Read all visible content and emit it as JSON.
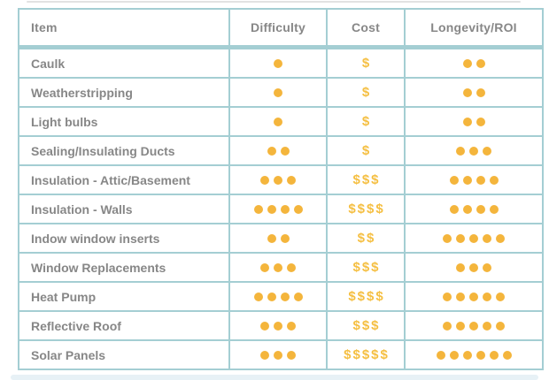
{
  "chart_data": {
    "type": "table",
    "columns": [
      "Item",
      "Difficulty",
      "Cost",
      "Longevity/ROI"
    ],
    "rating_legend": {
      "difficulty_symbol": "dot",
      "cost_symbol": "$",
      "longevity_symbol": "dot"
    },
    "rows": [
      {
        "item": "Caulk",
        "difficulty": 1,
        "cost": 1,
        "longevity": 2
      },
      {
        "item": "Weatherstripping",
        "difficulty": 1,
        "cost": 1,
        "longevity": 2
      },
      {
        "item": "Light bulbs",
        "difficulty": 1,
        "cost": 1,
        "longevity": 2
      },
      {
        "item": "Sealing/Insulating Ducts",
        "difficulty": 2,
        "cost": 1,
        "longevity": 3
      },
      {
        "item": "Insulation - Attic/Basement",
        "difficulty": 3,
        "cost": 3,
        "longevity": 4
      },
      {
        "item": "Insulation - Walls",
        "difficulty": 4,
        "cost": 4,
        "longevity": 4
      },
      {
        "item": "Indow window inserts",
        "difficulty": 2,
        "cost": 2,
        "longevity": 5
      },
      {
        "item": "Window Replacements",
        "difficulty": 3,
        "cost": 3,
        "longevity": 3
      },
      {
        "item": "Heat Pump",
        "difficulty": 4,
        "cost": 4,
        "longevity": 5
      },
      {
        "item": "Reflective Roof",
        "difficulty": 3,
        "cost": 3,
        "longevity": 5
      },
      {
        "item": "Solar Panels",
        "difficulty": 3,
        "cost": 5,
        "longevity": 6
      }
    ]
  },
  "colors": {
    "border_teal": "#a4ced3",
    "dot_amber": "#f4b53c",
    "dollar_amber": "#f5bf42",
    "text_gray": "#878787",
    "top_line_gray": "#e2e2e2",
    "bottom_bar_blue": "#e7f1f6"
  }
}
